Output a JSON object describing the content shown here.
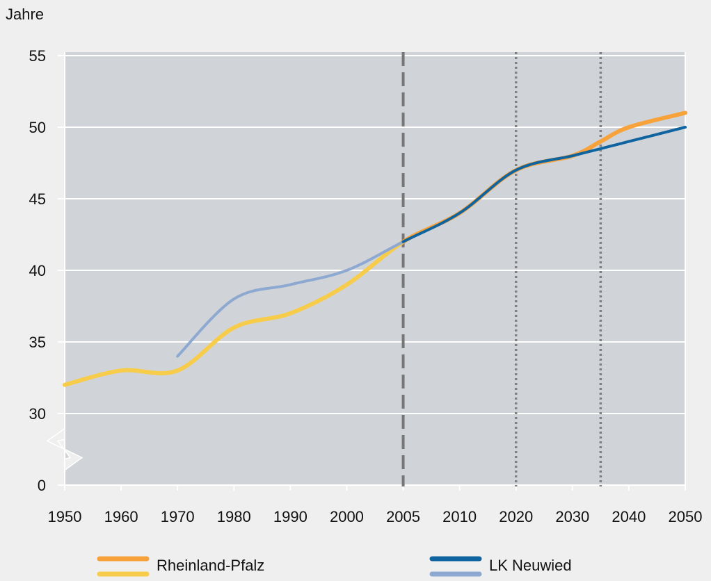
{
  "chart_data": {
    "type": "line",
    "y_label": "Jahre",
    "xticks": [
      1950,
      1960,
      1970,
      1980,
      1990,
      2000,
      2005,
      2010,
      2020,
      2030,
      2040,
      2050
    ],
    "ylim": [
      0,
      55
    ],
    "yticks": [
      0,
      30,
      35,
      40,
      45,
      50,
      55
    ],
    "y_break": [
      0,
      30
    ],
    "grid": true,
    "background": "#d0d4d8",
    "projection_start": 2005,
    "vlines": [
      {
        "x": 2005,
        "style": "dashed",
        "color": "#767676"
      },
      {
        "x": 2020,
        "style": "dotted",
        "color": "#808080"
      },
      {
        "x": 2035,
        "style": "dotted",
        "color": "#808080"
      }
    ],
    "series": [
      {
        "name": "Rheinland-Pfalz",
        "color": "#f7a23a",
        "history_color": "#f8cc4b",
        "width": 6,
        "x": [
          1950,
          1960,
          1970,
          1980,
          1990,
          2000,
          2005,
          2010,
          2020,
          2030,
          2035,
          2040,
          2050
        ],
        "values": [
          32,
          33,
          33,
          36,
          37,
          39,
          42,
          44,
          47,
          48,
          49,
          50,
          51
        ]
      },
      {
        "name": "LK Neuwied",
        "color": "#0f64a0",
        "history_color": "#8ea9d1",
        "width": 4,
        "x": [
          1970,
          1980,
          1990,
          2000,
          2005,
          2010,
          2020,
          2030,
          2035,
          2040,
          2050
        ],
        "values": [
          34,
          38,
          39,
          40,
          42,
          44,
          47,
          48,
          48.5,
          49,
          50
        ]
      }
    ]
  }
}
